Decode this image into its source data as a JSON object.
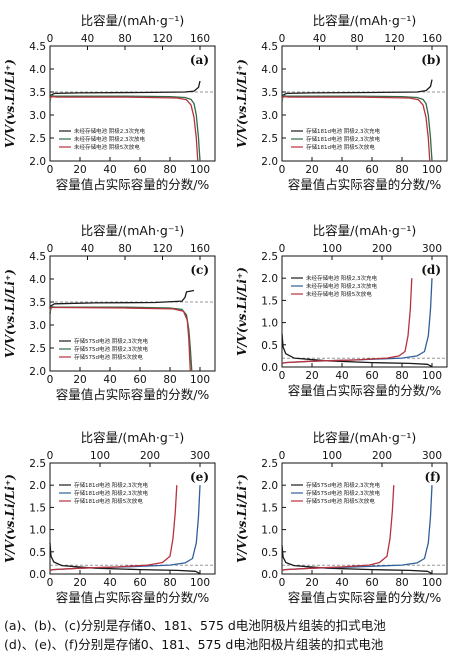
{
  "captions": {
    "line1": "(a)、(b)、(c)分别是存储0、181、575 d电池阴极片组装的扣式电池",
    "line2": "(d)、(e)、(f)分别是存储0、181、575 d电池阳极片组装的扣式电池"
  },
  "colors": {
    "black": "#1a1a1a",
    "green": "#2f6b45",
    "red": "#b8313d",
    "blue": "#2f5f9a"
  },
  "chart_data": [
    {
      "id": "a",
      "type": "line",
      "letter": "(a)",
      "top_axis_label": "比容量/(mAh·g⁻¹)",
      "bottom_axis_label": "容量值占实际容量的分数/%",
      "ylabel": "V/V(vs.Li/Li⁺)",
      "xlim": [
        0,
        110
      ],
      "ylim": [
        2.0,
        4.5
      ],
      "top_ticks": [
        "0",
        "40",
        "80",
        "120",
        "160"
      ],
      "top_scale": 160,
      "bottom_ticks": [
        0,
        20,
        40,
        60,
        80,
        100
      ],
      "y_ticks": [
        2.0,
        2.5,
        3.0,
        3.5,
        4.0,
        4.5
      ],
      "ref_lines": [
        3.5
      ],
      "legend": [
        "未经存储电池 阴极2,3次充电",
        "未经存储电池 阴极2,3次放电",
        "未经存储电池 阴极5次放电"
      ],
      "series": [
        {
          "color": "black",
          "points": [
            [
              0,
              3.3
            ],
            [
              0.6,
              3.43
            ],
            [
              3,
              3.47
            ],
            [
              20,
              3.48
            ],
            [
              60,
              3.49
            ],
            [
              90,
              3.5
            ],
            [
              96,
              3.52
            ],
            [
              99,
              3.6
            ],
            [
              100,
              3.74
            ]
          ]
        },
        {
          "color": "green",
          "points": [
            [
              0,
              3.3
            ],
            [
              0.6,
              3.42
            ],
            [
              3,
              3.41
            ],
            [
              50,
              3.41
            ],
            [
              80,
              3.4
            ],
            [
              90,
              3.38
            ],
            [
              94,
              3.34
            ],
            [
              96,
              3.25
            ],
            [
              97.5,
              3.0
            ],
            [
              99,
              2.5
            ],
            [
              100,
              2.0
            ]
          ]
        },
        {
          "color": "red",
          "points": [
            [
              0,
              3.35
            ],
            [
              1,
              3.4
            ],
            [
              5,
              3.39
            ],
            [
              50,
              3.39
            ],
            [
              85,
              3.37
            ],
            [
              91,
              3.33
            ],
            [
              94,
              3.22
            ],
            [
              96,
              2.95
            ],
            [
              97.5,
              2.5
            ],
            [
              98.5,
              2.0
            ]
          ]
        }
      ]
    },
    {
      "id": "b",
      "type": "line",
      "letter": "(b)",
      "top_axis_label": "比容量/(mAh·g⁻¹)",
      "bottom_axis_label": "容量值占实际容量的分数/%",
      "ylabel": "V/V(vs.Li/Li⁺)",
      "xlim": [
        0,
        110
      ],
      "ylim": [
        2.0,
        4.5
      ],
      "top_ticks": [
        "0",
        "40",
        "80",
        "120",
        "160"
      ],
      "top_scale": 160,
      "bottom_ticks": [
        0,
        20,
        40,
        60,
        80,
        100
      ],
      "y_ticks": [
        2.0,
        2.5,
        3.0,
        3.5,
        4.0,
        4.5
      ],
      "ref_lines": [
        3.5
      ],
      "legend": [
        "存储181d电池 阴极2,3次充电",
        "存储181d电池 阴极2,3次放电",
        "存储181d电池 阴极5次放电"
      ],
      "series": [
        {
          "color": "black",
          "points": [
            [
              0,
              3.3
            ],
            [
              0.6,
              3.43
            ],
            [
              3,
              3.47
            ],
            [
              20,
              3.48
            ],
            [
              60,
              3.49
            ],
            [
              90,
              3.5
            ],
            [
              96,
              3.53
            ],
            [
              99,
              3.62
            ],
            [
              100,
              3.77
            ]
          ]
        },
        {
          "color": "green",
          "points": [
            [
              0,
              3.3
            ],
            [
              0.6,
              3.42
            ],
            [
              3,
              3.41
            ],
            [
              50,
              3.41
            ],
            [
              80,
              3.4
            ],
            [
              90,
              3.38
            ],
            [
              94,
              3.34
            ],
            [
              96,
              3.25
            ],
            [
              97.5,
              3.0
            ],
            [
              99,
              2.5
            ],
            [
              100,
              2.0
            ]
          ]
        },
        {
          "color": "red",
          "points": [
            [
              0,
              3.35
            ],
            [
              1,
              3.4
            ],
            [
              5,
              3.39
            ],
            [
              50,
              3.39
            ],
            [
              85,
              3.37
            ],
            [
              91,
              3.33
            ],
            [
              94,
              3.22
            ],
            [
              96,
              2.95
            ],
            [
              97.5,
              2.5
            ],
            [
              98.5,
              2.0
            ]
          ]
        }
      ]
    },
    {
      "id": "c",
      "type": "line",
      "letter": "(c)",
      "top_axis_label": "比容量/(mAh·g⁻¹)",
      "bottom_axis_label": "容量值占实际容量的分数/%",
      "ylabel": "V/V(vs.Li/Li⁺)",
      "xlim": [
        0,
        110
      ],
      "ylim": [
        2.0,
        4.5
      ],
      "top_ticks": [
        "0",
        "40",
        "80",
        "120",
        "160"
      ],
      "top_scale": 160,
      "bottom_ticks": [
        0,
        20,
        40,
        60,
        80,
        100
      ],
      "y_ticks": [
        2.0,
        2.5,
        3.0,
        3.5,
        4.0,
        4.5
      ],
      "ref_lines": [
        3.5
      ],
      "legend": [
        "存储575d电池 阴极2,3次充电",
        "存储575d电池 阴极2,3次放电",
        "存储575d电池 阴极5次放电"
      ],
      "series": [
        {
          "color": "black",
          "points": [
            [
              0,
              3.25
            ],
            [
              0.8,
              3.42
            ],
            [
              3,
              3.46
            ],
            [
              30,
              3.48
            ],
            [
              70,
              3.49
            ],
            [
              88,
              3.52
            ],
            [
              90,
              3.6
            ],
            [
              91,
              3.72
            ],
            [
              96,
              3.75
            ]
          ]
        },
        {
          "color": "green",
          "points": [
            [
              0,
              3.28
            ],
            [
              0.8,
              3.4
            ],
            [
              3,
              3.39
            ],
            [
              50,
              3.39
            ],
            [
              80,
              3.37
            ],
            [
              88,
              3.34
            ],
            [
              91,
              3.22
            ],
            [
              92.5,
              2.9
            ],
            [
              93.5,
              2.5
            ],
            [
              94.5,
              2.0
            ]
          ]
        },
        {
          "color": "red",
          "points": [
            [
              0,
              3.32
            ],
            [
              1,
              3.38
            ],
            [
              5,
              3.38
            ],
            [
              50,
              3.37
            ],
            [
              82,
              3.35
            ],
            [
              89,
              3.3
            ],
            [
              91.5,
              3.1
            ],
            [
              92.5,
              2.7
            ],
            [
              93.5,
              2.0
            ]
          ]
        }
      ]
    },
    {
      "id": "d",
      "type": "line",
      "letter": "(d)",
      "top_axis_label": "比容量/(mAh·g⁻¹)",
      "bottom_axis_label": "容量值占实际容量的分数/%",
      "ylabel": "V/V(vs.Li/Li⁺)",
      "xlim": [
        0,
        110
      ],
      "ylim": [
        0.0,
        2.5
      ],
      "top_ticks": [
        "0",
        "100",
        "200",
        "300"
      ],
      "top_scale": 300,
      "bottom_ticks": [
        0,
        20,
        40,
        60,
        80,
        100
      ],
      "y_ticks": [
        0.0,
        0.5,
        1.0,
        1.5,
        2.0,
        2.5
      ],
      "ref_lines": [
        0.2
      ],
      "legend": [
        "未经存储电池 阳极2,3次充电",
        "未经存储电池 阳极2,3次放电",
        "未经存储电池 阳极5次放电"
      ],
      "series": [
        {
          "color": "black",
          "points": [
            [
              0,
              0.75
            ],
            [
              0.7,
              0.45
            ],
            [
              2.5,
              0.3
            ],
            [
              8,
              0.2
            ],
            [
              30,
              0.14
            ],
            [
              60,
              0.1
            ],
            [
              85,
              0.08
            ],
            [
              97,
              0.06
            ],
            [
              100,
              0.01
            ]
          ]
        },
        {
          "color": "blue",
          "points": [
            [
              0,
              0.08
            ],
            [
              2,
              0.1
            ],
            [
              20,
              0.13
            ],
            [
              50,
              0.16
            ],
            [
              80,
              0.2
            ],
            [
              90,
              0.25
            ],
            [
              95,
              0.35
            ],
            [
              97.5,
              0.7
            ],
            [
              99,
              1.3
            ],
            [
              100,
              2.0
            ]
          ]
        },
        {
          "color": "red",
          "points": [
            [
              0,
              0.08
            ],
            [
              2,
              0.1
            ],
            [
              20,
              0.13
            ],
            [
              50,
              0.16
            ],
            [
              70,
              0.2
            ],
            [
              78,
              0.25
            ],
            [
              82,
              0.35
            ],
            [
              84,
              0.7
            ],
            [
              85.5,
              1.3
            ],
            [
              86.5,
              2.0
            ]
          ]
        }
      ]
    },
    {
      "id": "e",
      "type": "line",
      "letter": "(e)",
      "top_axis_label": "比容量/(mAh·g⁻¹)",
      "bottom_axis_label": "容量值占实际容量的分数/%",
      "ylabel": "V/V(vs.Li/Li⁺)",
      "xlim": [
        0,
        110
      ],
      "ylim": [
        0.0,
        2.5
      ],
      "top_ticks": [
        "0",
        "100",
        "200",
        "300"
      ],
      "top_scale": 300,
      "bottom_ticks": [
        0,
        20,
        40,
        60,
        80,
        100
      ],
      "y_ticks": [
        0.0,
        0.5,
        1.0,
        1.5,
        2.0,
        2.5
      ],
      "ref_lines": [
        0.2
      ],
      "legend": [
        "存储181d电池 阳极2,3次充电",
        "存储181d电池 阳极2,3次放电",
        "存储181d电池 阳极5次放电"
      ],
      "series": [
        {
          "color": "black",
          "points": [
            [
              0,
              0.7
            ],
            [
              0.7,
              0.4
            ],
            [
              2.5,
              0.27
            ],
            [
              8,
              0.19
            ],
            [
              30,
              0.13
            ],
            [
              60,
              0.1
            ],
            [
              85,
              0.08
            ],
            [
              97,
              0.06
            ],
            [
              100,
              0.01
            ]
          ]
        },
        {
          "color": "blue",
          "points": [
            [
              0,
              0.08
            ],
            [
              2,
              0.1
            ],
            [
              20,
              0.13
            ],
            [
              50,
              0.16
            ],
            [
              80,
              0.2
            ],
            [
              90,
              0.25
            ],
            [
              95,
              0.35
            ],
            [
              97.5,
              0.7
            ],
            [
              99,
              1.3
            ],
            [
              100,
              2.0
            ]
          ]
        },
        {
          "color": "red",
          "points": [
            [
              0,
              0.08
            ],
            [
              2,
              0.1
            ],
            [
              20,
              0.13
            ],
            [
              45,
              0.16
            ],
            [
              65,
              0.2
            ],
            [
              75,
              0.26
            ],
            [
              80,
              0.4
            ],
            [
              82,
              0.8
            ],
            [
              83.5,
              1.4
            ],
            [
              84.5,
              2.0
            ]
          ]
        }
      ]
    },
    {
      "id": "f",
      "type": "line",
      "letter": "(f)",
      "top_axis_label": "比容量/(mAh·g⁻¹)",
      "bottom_axis_label": "容量值占实际容量的分数/%",
      "ylabel": "V/V(vs.Li/Li⁺)",
      "xlim": [
        0,
        110
      ],
      "ylim": [
        0.0,
        2.5
      ],
      "top_ticks": [
        "0",
        "100",
        "200",
        "300"
      ],
      "top_scale": 300,
      "bottom_ticks": [
        0,
        20,
        40,
        60,
        80,
        100
      ],
      "y_ticks": [
        0.0,
        0.5,
        1.0,
        1.5,
        2.0,
        2.5
      ],
      "ref_lines": [
        0.2
      ],
      "legend": [
        "存储575d电池 阳极2,3次充电",
        "存储575d电池 阳极2,3次放电",
        "存储575d电池 阳极5次放电"
      ],
      "series": [
        {
          "color": "black",
          "points": [
            [
              0,
              0.65
            ],
            [
              0.7,
              0.38
            ],
            [
              2.5,
              0.26
            ],
            [
              8,
              0.19
            ],
            [
              30,
              0.13
            ],
            [
              60,
              0.1
            ],
            [
              85,
              0.08
            ],
            [
              97,
              0.06
            ],
            [
              100,
              0.01
            ]
          ]
        },
        {
          "color": "blue",
          "points": [
            [
              0,
              0.08
            ],
            [
              2,
              0.1
            ],
            [
              20,
              0.13
            ],
            [
              50,
              0.16
            ],
            [
              80,
              0.2
            ],
            [
              90,
              0.25
            ],
            [
              95,
              0.35
            ],
            [
              97.5,
              0.7
            ],
            [
              99,
              1.3
            ],
            [
              100,
              2.0
            ]
          ]
        },
        {
          "color": "red",
          "points": [
            [
              0,
              0.08
            ],
            [
              2,
              0.1
            ],
            [
              20,
              0.13
            ],
            [
              40,
              0.16
            ],
            [
              58,
              0.2
            ],
            [
              65,
              0.26
            ],
            [
              70,
              0.4
            ],
            [
              72,
              0.8
            ],
            [
              73.5,
              1.4
            ],
            [
              74.5,
              2.0
            ]
          ]
        }
      ]
    }
  ]
}
